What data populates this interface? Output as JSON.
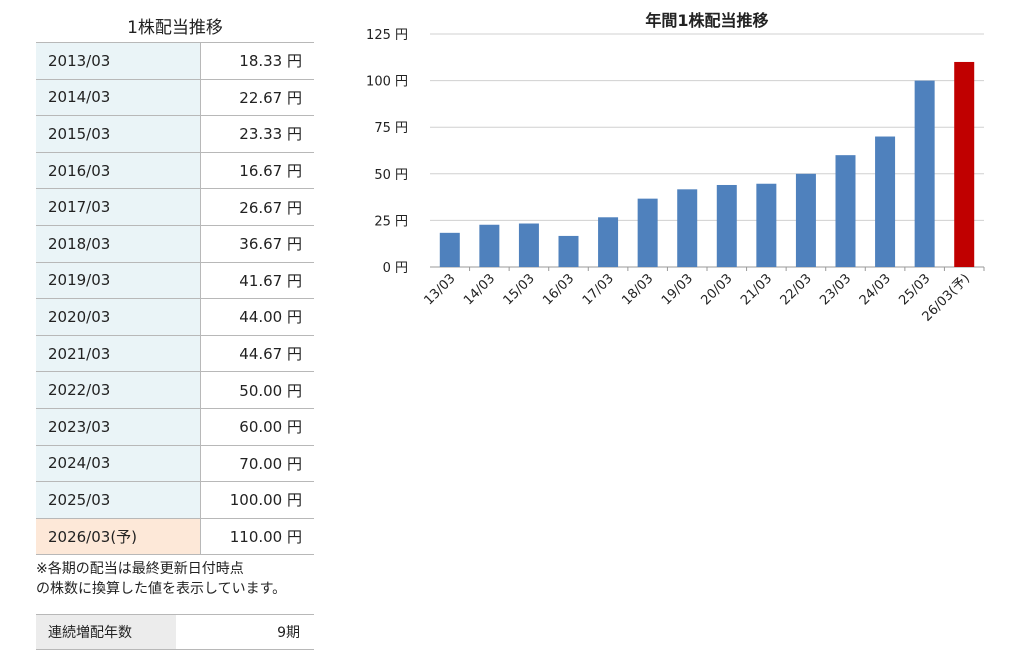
{
  "left_panel": {
    "title": "1株配当推移",
    "rows": [
      {
        "period": "2013/03",
        "amount": "18.33 円"
      },
      {
        "period": "2014/03",
        "amount": "22.67 円"
      },
      {
        "period": "2015/03",
        "amount": "23.33 円"
      },
      {
        "period": "2016/03",
        "amount": "16.67 円"
      },
      {
        "period": "2017/03",
        "amount": "26.67 円"
      },
      {
        "period": "2018/03",
        "amount": "36.67 円"
      },
      {
        "period": "2019/03",
        "amount": "41.67 円"
      },
      {
        "period": "2020/03",
        "amount": "44.00 円"
      },
      {
        "period": "2021/03",
        "amount": "44.67 円"
      },
      {
        "period": "2022/03",
        "amount": "50.00 円"
      },
      {
        "period": "2023/03",
        "amount": "60.00 円"
      },
      {
        "period": "2024/03",
        "amount": "70.00 円"
      },
      {
        "period": "2025/03",
        "amount": "100.00 円"
      },
      {
        "period": "2026/03(予)",
        "amount": "110.00 円",
        "forecast": true
      }
    ],
    "note_line1": "※各期の配当は最終更新日付時点",
    "note_line2": "の株数に換算した値を表示しています。",
    "streak_label": "連続増配年数",
    "streak_value": "9期"
  },
  "chart_data": {
    "type": "bar",
    "title": "年間1株配当推移",
    "categories": [
      "13/03",
      "14/03",
      "15/03",
      "16/03",
      "17/03",
      "18/03",
      "19/03",
      "20/03",
      "21/03",
      "22/03",
      "23/03",
      "24/03",
      "25/03",
      "26/03(予)"
    ],
    "values": [
      18.33,
      22.67,
      23.33,
      16.67,
      26.67,
      36.67,
      41.67,
      44.0,
      44.67,
      50.0,
      60.0,
      70.0,
      100.0,
      110.0
    ],
    "ylim": [
      0,
      125
    ],
    "yticks": [
      0,
      25,
      50,
      75,
      100,
      125
    ],
    "ytick_labels": [
      "0 円",
      "25 円",
      "50 円",
      "75 円",
      "100 円",
      "125 円"
    ],
    "grid": true,
    "colors": {
      "actual": "#4f81bd",
      "forecast": "#c00000",
      "grid": "#d0d0d0",
      "axis": "#999999"
    },
    "forecast_index": 13
  }
}
